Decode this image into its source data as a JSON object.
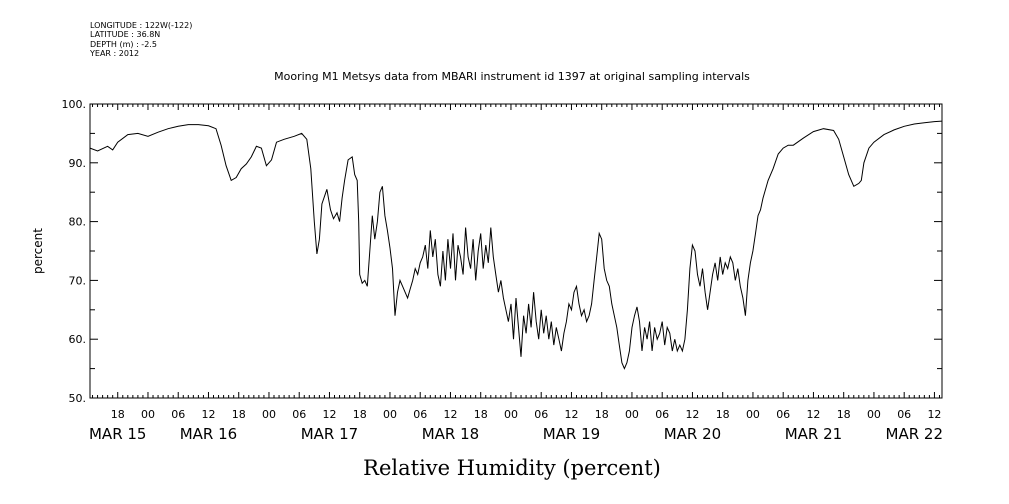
{
  "metadata": {
    "longitude": "LONGITUDE : 122W(-122)",
    "latitude": "LATITUDE : 36.8N",
    "depth": "DEPTH (m) : -2.5",
    "year": "YEAR : 2012"
  },
  "chart_data": {
    "type": "line",
    "title": "Mooring M1 Metsys data from MBARI instrument id 1397 at original sampling intervals",
    "xlabel": "Relative Humidity (percent)",
    "ylabel": "percent",
    "ylim": [
      50,
      100
    ],
    "yticks": [
      50,
      60,
      70,
      80,
      90,
      100
    ],
    "ytick_labels": [
      "50.",
      "60.",
      "70.",
      "80.",
      "90.",
      "100."
    ],
    "x_units": "hours since MAR 15 00:00, 2012",
    "xlim": [
      12.5,
      181.5
    ],
    "hour_labels": [
      {
        "h": 18,
        "label": "18"
      },
      {
        "h": 24,
        "label": "00"
      },
      {
        "h": 30,
        "label": "06"
      },
      {
        "h": 36,
        "label": "12"
      },
      {
        "h": 42,
        "label": "18"
      },
      {
        "h": 48,
        "label": "00"
      },
      {
        "h": 54,
        "label": "06"
      },
      {
        "h": 60,
        "label": "12"
      },
      {
        "h": 66,
        "label": "18"
      },
      {
        "h": 72,
        "label": "00"
      },
      {
        "h": 78,
        "label": "06"
      },
      {
        "h": 84,
        "label": "12"
      },
      {
        "h": 90,
        "label": "18"
      },
      {
        "h": 96,
        "label": "00"
      },
      {
        "h": 102,
        "label": "06"
      },
      {
        "h": 108,
        "label": "12"
      },
      {
        "h": 114,
        "label": "18"
      },
      {
        "h": 120,
        "label": "00"
      },
      {
        "h": 126,
        "label": "06"
      },
      {
        "h": 132,
        "label": "12"
      },
      {
        "h": 138,
        "label": "18"
      },
      {
        "h": 144,
        "label": "00"
      },
      {
        "h": 150,
        "label": "06"
      },
      {
        "h": 156,
        "label": "12"
      },
      {
        "h": 162,
        "label": "18"
      },
      {
        "h": 168,
        "label": "00"
      },
      {
        "h": 174,
        "label": "06"
      },
      {
        "h": 180,
        "label": "12"
      }
    ],
    "day_labels": [
      {
        "h": 18,
        "label": "MAR 15"
      },
      {
        "h": 36,
        "label": "MAR 16"
      },
      {
        "h": 60,
        "label": "MAR 17"
      },
      {
        "h": 84,
        "label": "MAR 18"
      },
      {
        "h": 108,
        "label": "MAR 19"
      },
      {
        "h": 132,
        "label": "MAR 20"
      },
      {
        "h": 156,
        "label": "MAR 21"
      },
      {
        "h": 176,
        "label": "MAR 22"
      }
    ],
    "series": [
      {
        "values": [
          [
            12.5,
            92.5
          ],
          [
            14,
            92
          ],
          [
            16,
            92.8
          ],
          [
            17,
            92.2
          ],
          [
            18,
            93.5
          ],
          [
            20,
            94.8
          ],
          [
            22,
            95
          ],
          [
            24,
            94.5
          ],
          [
            26,
            95.2
          ],
          [
            28,
            95.8
          ],
          [
            30,
            96.2
          ],
          [
            32,
            96.5
          ],
          [
            34,
            96.5
          ],
          [
            36,
            96.3
          ],
          [
            37.5,
            95.8
          ],
          [
            38.5,
            93
          ],
          [
            39.5,
            89.5
          ],
          [
            40.5,
            87
          ],
          [
            41.5,
            87.5
          ],
          [
            42.5,
            89
          ],
          [
            43.5,
            89.8
          ],
          [
            44.5,
            91
          ],
          [
            45.5,
            92.8
          ],
          [
            46.5,
            92.5
          ],
          [
            47.5,
            89.5
          ],
          [
            48.5,
            90.5
          ],
          [
            49.5,
            93.5
          ],
          [
            51,
            94
          ],
          [
            53,
            94.5
          ],
          [
            54.5,
            95
          ],
          [
            55.5,
            94
          ],
          [
            56.3,
            89
          ],
          [
            57,
            80
          ],
          [
            57.5,
            74.5
          ],
          [
            58,
            77
          ],
          [
            58.5,
            83
          ],
          [
            59.5,
            85.5
          ],
          [
            60.2,
            82
          ],
          [
            60.8,
            80.5
          ],
          [
            61.5,
            81.5
          ],
          [
            62,
            80
          ],
          [
            62.5,
            84
          ],
          [
            63,
            87
          ],
          [
            63.7,
            90.5
          ],
          [
            64.5,
            91
          ],
          [
            65,
            88
          ],
          [
            65.5,
            87
          ],
          [
            65.8,
            80
          ],
          [
            66,
            71
          ],
          [
            66.5,
            69.5
          ],
          [
            67,
            70
          ],
          [
            67.5,
            69
          ],
          [
            68,
            75
          ],
          [
            68.5,
            81
          ],
          [
            69,
            77
          ],
          [
            69.5,
            80
          ],
          [
            70,
            85
          ],
          [
            70.5,
            86
          ],
          [
            71,
            81
          ],
          [
            71.5,
            78.5
          ],
          [
            72,
            75.5
          ],
          [
            72.5,
            72
          ],
          [
            73,
            64
          ],
          [
            73.5,
            68
          ],
          [
            74,
            70
          ],
          [
            74.5,
            69
          ],
          [
            75,
            68
          ],
          [
            75.5,
            67
          ],
          [
            76,
            68.5
          ],
          [
            76.5,
            70
          ],
          [
            77,
            72
          ],
          [
            77.5,
            71
          ],
          [
            78,
            73
          ],
          [
            78.5,
            74
          ],
          [
            79,
            76
          ],
          [
            79.5,
            72
          ],
          [
            80,
            78.5
          ],
          [
            80.5,
            74
          ],
          [
            81,
            77
          ],
          [
            81.5,
            71
          ],
          [
            82,
            69
          ],
          [
            82.5,
            75
          ],
          [
            83,
            70
          ],
          [
            83.5,
            77
          ],
          [
            84,
            72
          ],
          [
            84.5,
            78
          ],
          [
            85,
            70
          ],
          [
            85.5,
            76
          ],
          [
            86,
            74
          ],
          [
            86.5,
            71
          ],
          [
            87,
            79
          ],
          [
            87.5,
            74
          ],
          [
            88,
            72
          ],
          [
            88.5,
            77
          ],
          [
            89,
            70
          ],
          [
            89.5,
            75
          ],
          [
            90,
            78
          ],
          [
            90.5,
            72
          ],
          [
            91,
            76
          ],
          [
            91.5,
            73
          ],
          [
            92,
            79
          ],
          [
            92.5,
            74
          ],
          [
            93,
            71
          ],
          [
            93.5,
            68
          ],
          [
            94,
            70
          ],
          [
            94.5,
            67
          ],
          [
            95,
            65
          ],
          [
            95.5,
            63
          ],
          [
            96,
            66
          ],
          [
            96.5,
            60
          ],
          [
            97,
            67
          ],
          [
            97.5,
            62
          ],
          [
            98,
            57
          ],
          [
            98.5,
            64
          ],
          [
            99,
            61
          ],
          [
            99.5,
            66
          ],
          [
            100,
            62
          ],
          [
            100.5,
            68
          ],
          [
            101,
            63
          ],
          [
            101.5,
            60
          ],
          [
            102,
            65
          ],
          [
            102.5,
            61
          ],
          [
            103,
            64
          ],
          [
            103.5,
            60
          ],
          [
            104,
            63
          ],
          [
            104.5,
            59
          ],
          [
            105,
            62
          ],
          [
            105.5,
            60
          ],
          [
            106,
            58
          ],
          [
            106.5,
            61
          ],
          [
            107,
            63
          ],
          [
            107.5,
            66
          ],
          [
            108,
            65
          ],
          [
            108.5,
            68
          ],
          [
            109,
            69
          ],
          [
            109.5,
            66
          ],
          [
            110,
            64
          ],
          [
            110.5,
            65
          ],
          [
            111,
            63
          ],
          [
            111.5,
            64
          ],
          [
            112,
            66
          ],
          [
            112.5,
            70
          ],
          [
            113,
            74
          ],
          [
            113.5,
            78
          ],
          [
            114,
            77
          ],
          [
            114.5,
            72
          ],
          [
            115,
            70
          ],
          [
            115.5,
            69
          ],
          [
            116,
            66
          ],
          [
            116.5,
            64
          ],
          [
            117,
            62
          ],
          [
            117.5,
            59
          ],
          [
            118,
            56
          ],
          [
            118.5,
            55
          ],
          [
            119,
            56
          ],
          [
            119.5,
            58
          ],
          [
            120,
            62
          ],
          [
            120.5,
            64
          ],
          [
            121,
            65.5
          ],
          [
            121.5,
            63
          ],
          [
            122,
            58
          ],
          [
            122.5,
            62
          ],
          [
            123,
            60
          ],
          [
            123.5,
            63
          ],
          [
            124,
            58
          ],
          [
            124.5,
            62
          ],
          [
            125,
            60
          ],
          [
            125.5,
            61
          ],
          [
            126,
            63
          ],
          [
            126.5,
            59
          ],
          [
            127,
            62
          ],
          [
            127.5,
            61
          ],
          [
            128,
            58
          ],
          [
            128.5,
            60
          ],
          [
            129,
            58
          ],
          [
            129.5,
            59
          ],
          [
            130,
            58
          ],
          [
            130.5,
            60
          ],
          [
            131,
            65
          ],
          [
            131.5,
            72
          ],
          [
            132,
            76
          ],
          [
            132.5,
            75
          ],
          [
            133,
            71
          ],
          [
            133.5,
            69
          ],
          [
            134,
            72
          ],
          [
            134.5,
            68
          ],
          [
            135,
            65
          ],
          [
            135.5,
            68
          ],
          [
            136,
            71
          ],
          [
            136.5,
            73
          ],
          [
            137,
            70
          ],
          [
            137.5,
            74
          ],
          [
            138,
            71
          ],
          [
            138.5,
            73
          ],
          [
            139,
            72
          ],
          [
            139.5,
            74
          ],
          [
            140,
            73
          ],
          [
            140.5,
            70
          ],
          [
            141,
            72
          ],
          [
            141.5,
            69
          ],
          [
            142,
            67
          ],
          [
            142.5,
            64
          ],
          [
            143,
            70
          ],
          [
            143.5,
            73
          ],
          [
            144,
            75
          ],
          [
            144.5,
            78
          ],
          [
            145,
            81
          ],
          [
            145.5,
            82
          ],
          [
            146,
            84
          ],
          [
            147,
            87
          ],
          [
            148,
            89
          ],
          [
            149,
            91.5
          ],
          [
            150,
            92.5
          ],
          [
            151,
            93
          ],
          [
            152,
            93
          ],
          [
            154,
            94.2
          ],
          [
            156,
            95.3
          ],
          [
            158,
            95.8
          ],
          [
            160,
            95.5
          ],
          [
            161,
            94
          ],
          [
            162,
            91
          ],
          [
            163,
            88
          ],
          [
            164,
            86
          ],
          [
            165,
            86.5
          ],
          [
            165.5,
            87
          ],
          [
            166,
            90
          ],
          [
            167,
            92.5
          ],
          [
            168,
            93.5
          ],
          [
            170,
            94.8
          ],
          [
            172,
            95.6
          ],
          [
            174,
            96.2
          ],
          [
            176,
            96.6
          ],
          [
            178,
            96.8
          ],
          [
            180,
            97
          ],
          [
            181.5,
            97.1
          ]
        ]
      }
    ]
  }
}
